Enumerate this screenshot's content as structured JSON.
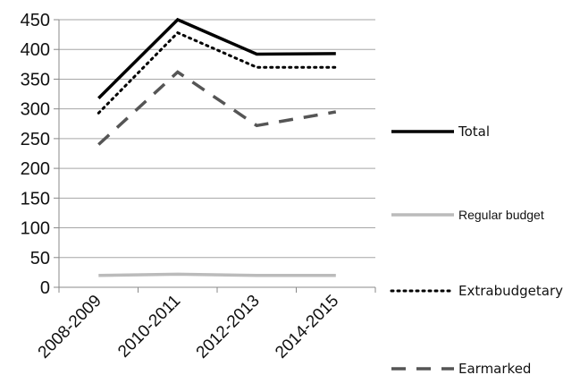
{
  "chart_data": {
    "type": "line",
    "title": "",
    "xlabel": "",
    "ylabel": "",
    "categories": [
      "2008-2009",
      "2010-2011",
      "2012-2013",
      "2014-2015"
    ],
    "ylim": [
      0,
      450
    ],
    "yticks": [
      0,
      50,
      100,
      150,
      200,
      250,
      300,
      350,
      400,
      450
    ],
    "grid": true,
    "legend_position": "right",
    "series": [
      {
        "name": "Total",
        "values": [
          318,
          450,
          392,
          393
        ],
        "color": "#000000",
        "style": "solid"
      },
      {
        "name": "Regular budget",
        "values": [
          20,
          22,
          20,
          20
        ],
        "color": "#bbbbbb",
        "style": "solid"
      },
      {
        "name": "Extrabudgetary",
        "values": [
          293,
          428,
          370,
          370
        ],
        "color": "#000000",
        "style": "dotted"
      },
      {
        "name": "Earmarked",
        "values": [
          240,
          362,
          272,
          295
        ],
        "color": "#555555",
        "style": "dashed"
      }
    ]
  }
}
